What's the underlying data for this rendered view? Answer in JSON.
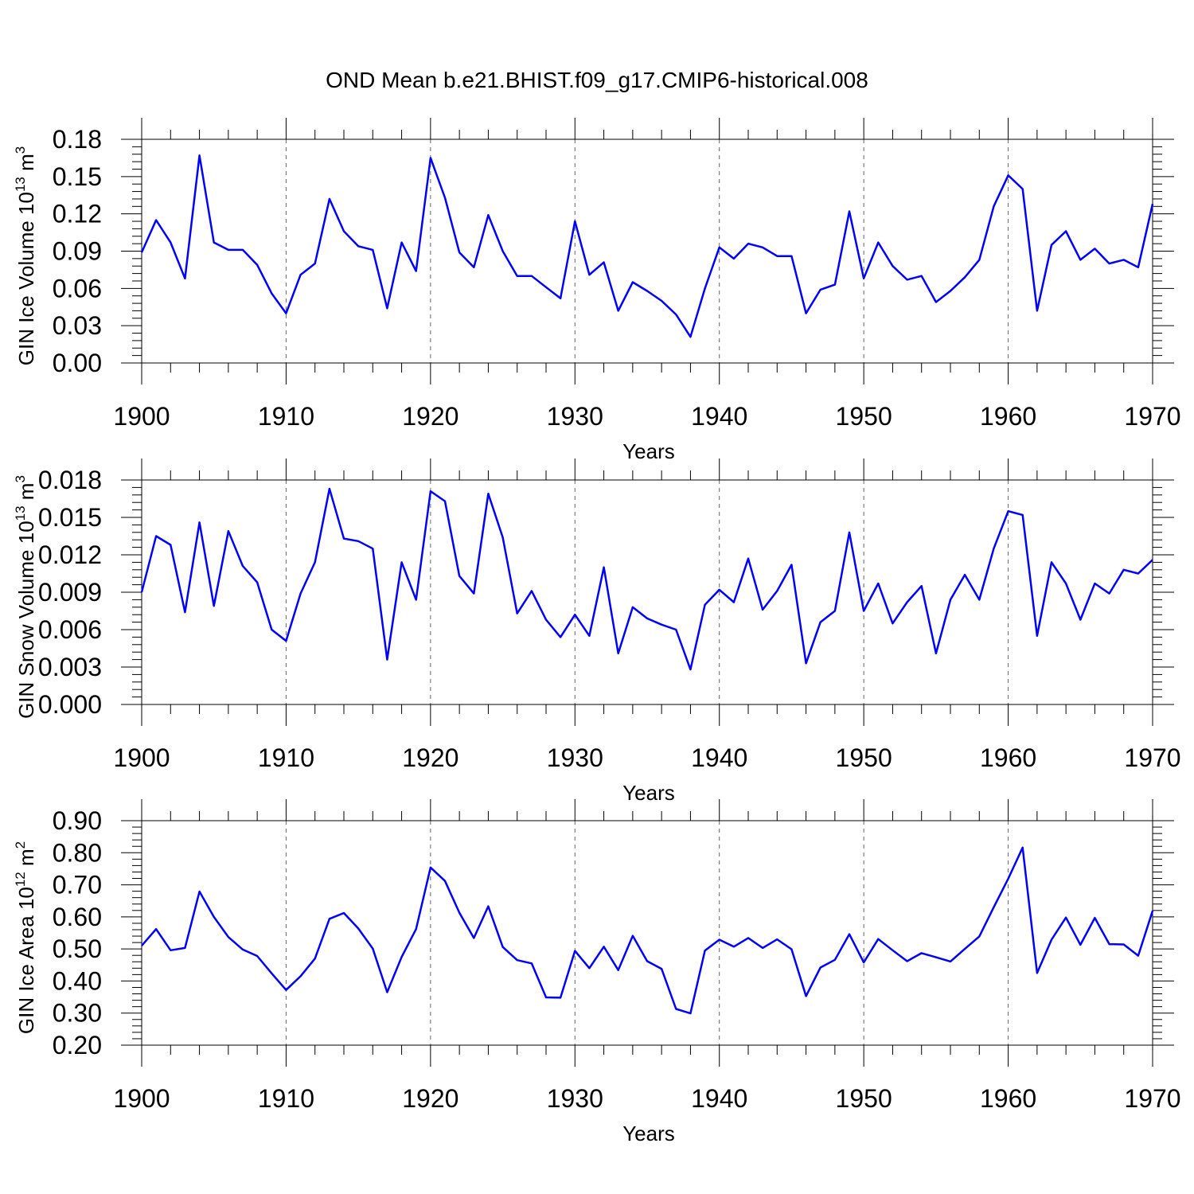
{
  "title": "OND Mean b.e21.BHIST.f09_g17.CMIP6-historical.008",
  "colors": {
    "line": "#0000ff",
    "axis": "#000000",
    "grid": "#666666",
    "background": "#ffffff"
  },
  "chart_data": [
    {
      "type": "line",
      "ylabel": "GIN Ice Volume",
      "ylabel_unit": {
        "base": "10",
        "exp": "13",
        "unit": "m",
        "unit_exp": "3"
      },
      "xlabel": "Years",
      "xlim": [
        1900,
        1970
      ],
      "ylim": [
        0,
        0.18
      ],
      "xticks": [
        "1900",
        "1910",
        "1920",
        "1930",
        "1940",
        "1950",
        "1960",
        "1970"
      ],
      "yticks": [
        "0.00",
        "0.03",
        "0.06",
        "0.09",
        "0.12",
        "0.15",
        "0.18"
      ],
      "grid": "vertical dashed at decades",
      "series": [
        {
          "x": [
            1900,
            1901,
            1902,
            1903,
            1904,
            1905,
            1906,
            1907,
            1908,
            1909,
            1910,
            1911,
            1912,
            1913,
            1914,
            1915,
            1916,
            1917,
            1918,
            1919,
            1920,
            1921,
            1922,
            1923,
            1924,
            1925,
            1926,
            1927,
            1928,
            1929,
            1930,
            1931,
            1932,
            1933,
            1934,
            1935,
            1936,
            1937,
            1938,
            1939,
            1940,
            1941,
            1942,
            1943,
            1944,
            1945,
            1946,
            1947,
            1948,
            1949,
            1950,
            1951,
            1952,
            1953,
            1954,
            1955,
            1956,
            1957,
            1958,
            1959,
            1960,
            1961,
            1962,
            1963,
            1964,
            1965,
            1966,
            1967,
            1968,
            1969,
            1970
          ],
          "values": [
            0.089,
            0.115,
            0.097,
            0.068,
            0.167,
            0.097,
            0.091,
            0.091,
            0.079,
            0.056,
            0.04,
            0.071,
            0.08,
            0.132,
            0.106,
            0.094,
            0.091,
            0.044,
            0.097,
            0.074,
            0.165,
            0.133,
            0.089,
            0.077,
            0.119,
            0.09,
            0.07,
            0.07,
            0.061,
            0.052,
            0.114,
            0.071,
            0.081,
            0.042,
            0.065,
            0.058,
            0.05,
            0.039,
            0.021,
            0.06,
            0.093,
            0.084,
            0.096,
            0.093,
            0.086,
            0.086,
            0.04,
            0.059,
            0.063,
            0.122,
            0.068,
            0.097,
            0.078,
            0.067,
            0.07,
            0.049,
            0.058,
            0.069,
            0.083,
            0.126,
            0.151,
            0.14,
            0.042,
            0.095,
            0.106,
            0.083,
            0.092,
            0.08,
            0.083,
            0.077,
            0.128
          ]
        }
      ]
    },
    {
      "type": "line",
      "ylabel": "GIN Snow Volume",
      "ylabel_unit": {
        "base": "10",
        "exp": "13",
        "unit": "m",
        "unit_exp": "3"
      },
      "xlabel": "Years",
      "xlim": [
        1900,
        1970
      ],
      "ylim": [
        0,
        0.018
      ],
      "xticks": [
        "1900",
        "1910",
        "1920",
        "1930",
        "1940",
        "1950",
        "1960",
        "1970"
      ],
      "yticks": [
        "0.000",
        "0.003",
        "0.006",
        "0.009",
        "0.012",
        "0.015",
        "0.018"
      ],
      "grid": "vertical dashed at decades",
      "series": [
        {
          "x": [
            1900,
            1901,
            1902,
            1903,
            1904,
            1905,
            1906,
            1907,
            1908,
            1909,
            1910,
            1911,
            1912,
            1913,
            1914,
            1915,
            1916,
            1917,
            1918,
            1919,
            1920,
            1921,
            1922,
            1923,
            1924,
            1925,
            1926,
            1927,
            1928,
            1929,
            1930,
            1931,
            1932,
            1933,
            1934,
            1935,
            1936,
            1937,
            1938,
            1939,
            1940,
            1941,
            1942,
            1943,
            1944,
            1945,
            1946,
            1947,
            1948,
            1949,
            1950,
            1951,
            1952,
            1953,
            1954,
            1955,
            1956,
            1957,
            1958,
            1959,
            1960,
            1961,
            1962,
            1963,
            1964,
            1965,
            1966,
            1967,
            1968,
            1969,
            1970
          ],
          "values": [
            0.009,
            0.0135,
            0.0128,
            0.0074,
            0.0146,
            0.0079,
            0.0139,
            0.0111,
            0.0098,
            0.006,
            0.0051,
            0.0089,
            0.0114,
            0.0173,
            0.0133,
            0.0131,
            0.0125,
            0.0036,
            0.0114,
            0.0084,
            0.0171,
            0.0163,
            0.0103,
            0.0089,
            0.0169,
            0.0134,
            0.0073,
            0.0091,
            0.0068,
            0.0054,
            0.0072,
            0.0055,
            0.011,
            0.0041,
            0.0078,
            0.0069,
            0.0064,
            0.006,
            0.0028,
            0.008,
            0.0092,
            0.0082,
            0.0117,
            0.0076,
            0.0091,
            0.0112,
            0.0033,
            0.0066,
            0.0075,
            0.0138,
            0.0075,
            0.0097,
            0.0065,
            0.0082,
            0.0095,
            0.0041,
            0.0084,
            0.0104,
            0.0084,
            0.0125,
            0.0155,
            0.0152,
            0.0055,
            0.0114,
            0.0097,
            0.0068,
            0.0097,
            0.0089,
            0.0108,
            0.0105,
            0.0116
          ]
        }
      ]
    },
    {
      "type": "line",
      "ylabel": "GIN Ice Area",
      "ylabel_unit": {
        "base": "10",
        "exp": "12",
        "unit": "m",
        "unit_exp": "2"
      },
      "xlabel": "Years",
      "xlim": [
        1900,
        1970
      ],
      "ylim": [
        0.2,
        0.9
      ],
      "xticks": [
        "1900",
        "1910",
        "1920",
        "1930",
        "1940",
        "1950",
        "1960",
        "1970"
      ],
      "yticks": [
        "0.20",
        "0.30",
        "0.40",
        "0.50",
        "0.60",
        "0.70",
        "0.80",
        "0.90"
      ],
      "grid": "vertical dashed at decades",
      "series": [
        {
          "x": [
            1900,
            1901,
            1902,
            1903,
            1904,
            1905,
            1906,
            1907,
            1908,
            1909,
            1910,
            1911,
            1912,
            1913,
            1914,
            1915,
            1916,
            1917,
            1918,
            1919,
            1920,
            1921,
            1922,
            1923,
            1924,
            1925,
            1926,
            1927,
            1928,
            1929,
            1930,
            1931,
            1932,
            1933,
            1934,
            1935,
            1936,
            1937,
            1938,
            1939,
            1940,
            1941,
            1942,
            1943,
            1944,
            1945,
            1946,
            1947,
            1948,
            1949,
            1950,
            1951,
            1952,
            1953,
            1954,
            1955,
            1956,
            1957,
            1958,
            1959,
            1960,
            1961,
            1962,
            1963,
            1964,
            1965,
            1966,
            1967,
            1968,
            1969,
            1970
          ],
          "values": [
            0.51,
            0.562,
            0.496,
            0.503,
            0.679,
            0.6,
            0.537,
            0.498,
            0.478,
            0.424,
            0.372,
            0.415,
            0.47,
            0.594,
            0.612,
            0.564,
            0.501,
            0.365,
            0.475,
            0.562,
            0.754,
            0.712,
            0.613,
            0.534,
            0.633,
            0.506,
            0.465,
            0.455,
            0.349,
            0.348,
            0.494,
            0.44,
            0.507,
            0.434,
            0.541,
            0.462,
            0.438,
            0.313,
            0.299,
            0.495,
            0.529,
            0.507,
            0.534,
            0.503,
            0.53,
            0.499,
            0.353,
            0.442,
            0.466,
            0.546,
            0.458,
            0.531,
            0.496,
            0.462,
            0.487,
            0.474,
            0.461,
            0.5,
            0.539,
            0.63,
            0.719,
            0.816,
            0.425,
            0.529,
            0.598,
            0.513,
            0.597,
            0.515,
            0.514,
            0.479,
            0.619
          ]
        }
      ]
    }
  ]
}
